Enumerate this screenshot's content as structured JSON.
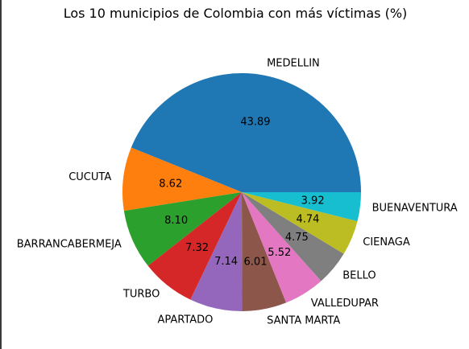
{
  "chart_data": {
    "type": "pie",
    "title": "Los 10 municipios de Colombia con más víctimas (%)",
    "categories": [
      "MEDELLIN",
      "CUCUTA",
      "BARRANCABERMEJA",
      "TURBO",
      "APARTADO",
      "SANTA MARTA",
      "VALLEDUPAR",
      "BELLO",
      "CIENAGA",
      "BUENAVENTURA"
    ],
    "values": [
      43.89,
      8.62,
      8.1,
      7.32,
      7.14,
      6.01,
      5.52,
      4.75,
      4.74,
      3.92
    ],
    "value_labels": [
      "43.89",
      "8.62",
      "8.10",
      "7.32",
      "7.14",
      "6.01",
      "5.52",
      "4.75",
      "4.74",
      "3.92"
    ],
    "colors": [
      "#1f77b4",
      "#ff7f0e",
      "#2ca02c",
      "#d62728",
      "#9467bd",
      "#8c564b",
      "#e377c2",
      "#7f7f7f",
      "#bcbd22",
      "#17becf"
    ],
    "start_angle_deg": 0,
    "direction": "counterclockwise"
  }
}
